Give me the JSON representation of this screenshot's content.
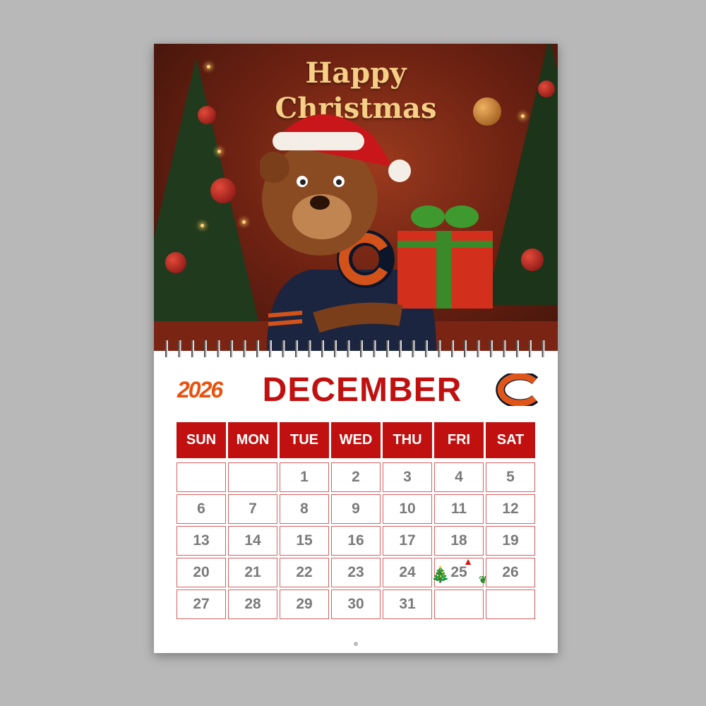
{
  "artwork": {
    "title_line1": "Happy",
    "title_line2": "Christmas"
  },
  "calendar": {
    "year": "2026",
    "month": "DECEMBER",
    "weekdays": [
      "SUN",
      "MON",
      "TUE",
      "WED",
      "THU",
      "FRI",
      "SAT"
    ],
    "days": [
      "",
      "",
      "1",
      "2",
      "3",
      "4",
      "5",
      "6",
      "7",
      "8",
      "9",
      "10",
      "11",
      "12",
      "13",
      "14",
      "15",
      "16",
      "17",
      "18",
      "19",
      "20",
      "21",
      "22",
      "23",
      "24",
      "25",
      "26",
      "27",
      "28",
      "29",
      "30",
      "31",
      "",
      ""
    ],
    "highlight_day": "25",
    "colors": {
      "header": "#c0100f",
      "month": "#c01010",
      "year": "#e8520e",
      "day_text": "#7a7a7a",
      "cell_border": "#d96060"
    }
  }
}
